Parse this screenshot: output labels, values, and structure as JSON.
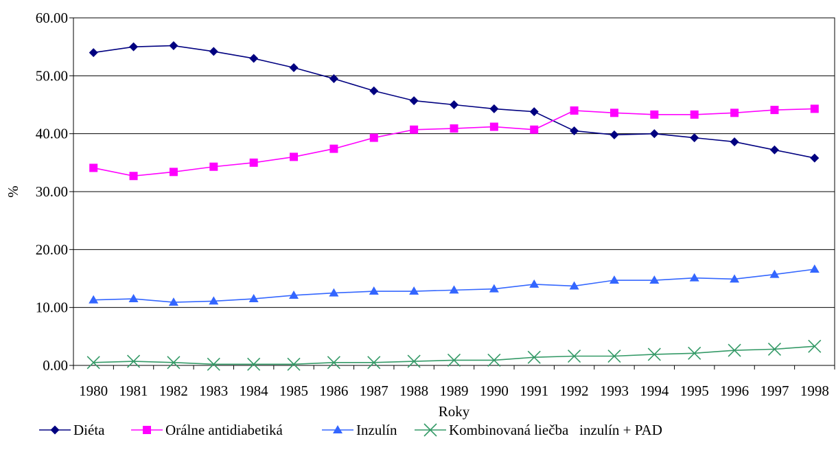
{
  "chart_data": {
    "type": "line",
    "title": "",
    "xlabel": "Roky",
    "ylabel": "%",
    "ylim": [
      0,
      60
    ],
    "yticks": [
      "0.00",
      "10.00",
      "20.00",
      "30.00",
      "40.00",
      "50.00",
      "60.00"
    ],
    "grid": "horizontal",
    "legend_position": "bottom",
    "categories": [
      "1980",
      "1981",
      "1982",
      "1983",
      "1984",
      "1985",
      "1986",
      "1987",
      "1988",
      "1989",
      "1990",
      "1991",
      "1992",
      "1993",
      "1994",
      "1995",
      "1996",
      "1997",
      "1998"
    ],
    "series": [
      {
        "name": "Diéta",
        "color": "#000080",
        "marker": "diamond",
        "values": [
          54.0,
          55.0,
          55.2,
          54.2,
          53.0,
          51.4,
          49.5,
          47.4,
          45.7,
          45.0,
          44.3,
          43.8,
          40.5,
          39.8,
          40.0,
          39.3,
          38.6,
          37.2,
          35.8
        ]
      },
      {
        "name": "Orálne antidiabetiká",
        "color": "#FF00FF",
        "marker": "square",
        "values": [
          34.1,
          32.7,
          33.4,
          34.3,
          35.0,
          36.0,
          37.4,
          39.3,
          40.7,
          40.9,
          41.2,
          40.7,
          44.0,
          43.6,
          43.3,
          43.3,
          43.6,
          44.1,
          44.3
        ]
      },
      {
        "name": "Inzulín",
        "color": "#3366FF",
        "marker": "triangle",
        "values": [
          11.3,
          11.5,
          10.9,
          11.1,
          11.5,
          12.1,
          12.5,
          12.8,
          12.8,
          13.0,
          13.2,
          14.0,
          13.7,
          14.7,
          14.7,
          15.1,
          14.9,
          15.7,
          16.6
        ]
      },
      {
        "name": "Kombinovaná liečba   inzulín + PAD",
        "color": "#339966",
        "marker": "x",
        "values": [
          0.5,
          0.7,
          0.5,
          0.2,
          0.2,
          0.2,
          0.5,
          0.5,
          0.7,
          0.9,
          0.9,
          1.4,
          1.6,
          1.6,
          1.9,
          2.1,
          2.6,
          2.8,
          3.3
        ]
      }
    ]
  }
}
